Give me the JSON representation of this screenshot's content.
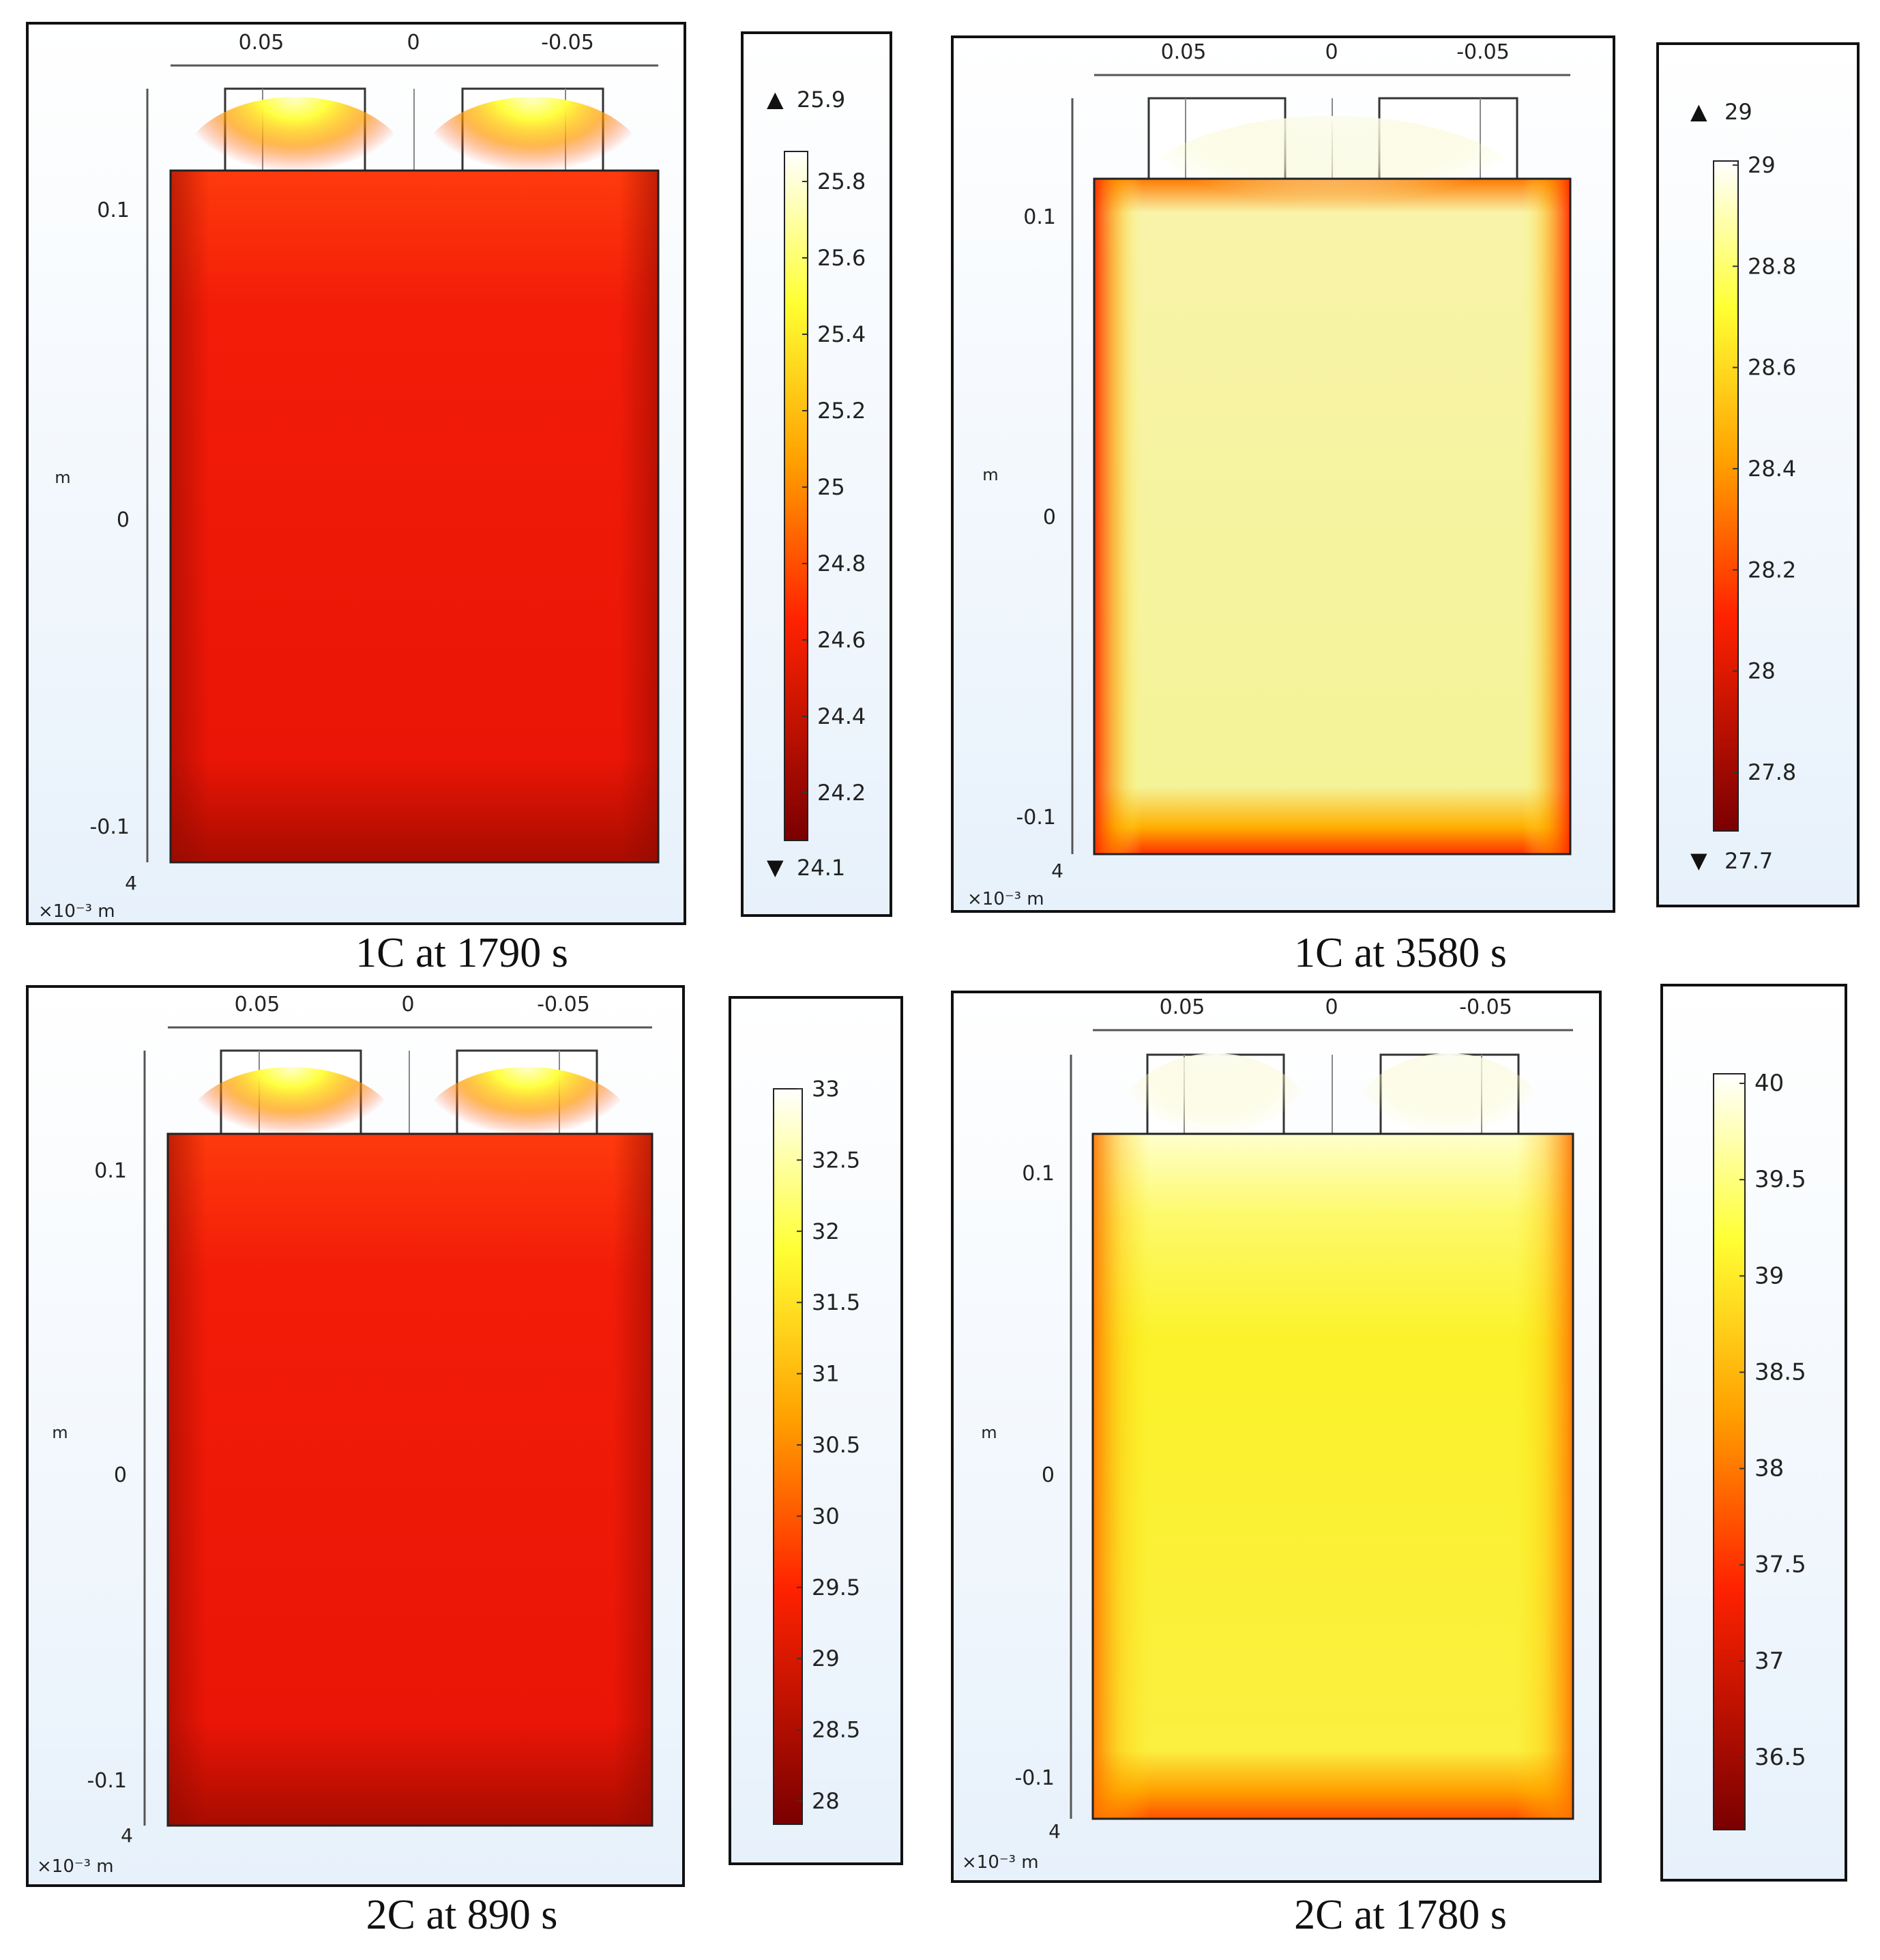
{
  "panels": [
    {
      "caption": "1C at 1790 s",
      "x_ticks": [
        "0.05",
        "0",
        "-0.05"
      ],
      "y_ticks": [
        "0.1",
        "0",
        "-0.1"
      ],
      "y_unit": "m",
      "depth_value": "4",
      "depth_unit": "×10⁻³ m",
      "colorbar": {
        "max_label": "25.9",
        "min_label": "24.1",
        "ticks": [
          "25.8",
          "25.6",
          "25.4",
          "25.2",
          "25",
          "24.8",
          "24.6",
          "24.4",
          "24.2"
        ]
      },
      "colors": {
        "body": "#f01a08",
        "edge": "#a80c00",
        "hot": "#ffffb0"
      }
    },
    {
      "caption": "1C at 3580 s",
      "x_ticks": [
        "0.05",
        "0",
        "-0.05"
      ],
      "y_ticks": [
        "0.1",
        "0",
        "-0.1"
      ],
      "y_unit": "m",
      "depth_value": "4",
      "depth_unit": "×10⁻³ m",
      "colorbar": {
        "max_label": "29",
        "min_label": "27.7",
        "ticks": [
          "29",
          "28.8",
          "28.6",
          "28.4",
          "28.2",
          "28",
          "27.8"
        ]
      },
      "colors": {
        "body": "#f6f6a0",
        "edge": "#e82000",
        "hot": "#fbfbe8"
      }
    },
    {
      "caption": "2C at 890 s",
      "x_ticks": [
        "0.05",
        "0",
        "-0.05"
      ],
      "y_ticks": [
        "0.1",
        "0",
        "-0.1"
      ],
      "y_unit": "m",
      "depth_value": "4",
      "depth_unit": "×10⁻³ m",
      "colorbar": {
        "max_label": "",
        "min_label": "",
        "ticks": [
          "33",
          "32.5",
          "32",
          "31.5",
          "31",
          "30.5",
          "30",
          "29.5",
          "29",
          "28.5",
          "28"
        ]
      },
      "colors": {
        "body": "#ee1a06",
        "edge": "#a00a00",
        "hot": "#ffffb0"
      }
    },
    {
      "caption": "2C at 1780 s",
      "x_ticks": [
        "0.05",
        "0",
        "-0.05"
      ],
      "y_ticks": [
        "0.1",
        "0",
        "-0.1"
      ],
      "y_unit": "m",
      "depth_value": "4",
      "depth_unit": "×10⁻³ m",
      "colorbar": {
        "max_label": "",
        "min_label": "",
        "ticks": [
          "40",
          "39.5",
          "39",
          "38.5",
          "38",
          "37.5",
          "37",
          "36.5"
        ]
      },
      "colors": {
        "body": "#fbf22c",
        "edge": "#f25000",
        "hot": "#fffff0"
      }
    }
  ]
}
